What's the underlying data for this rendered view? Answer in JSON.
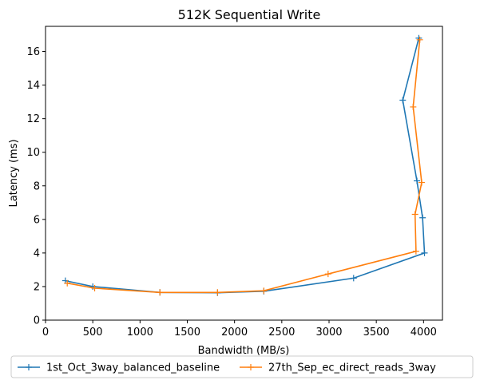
{
  "chart_data": {
    "type": "line",
    "title": "512K  Sequential Write",
    "xlabel": "Bandwidth (MB/s)",
    "ylabel": "Latency (ms)",
    "xlim": [
      0,
      4200
    ],
    "ylim": [
      0,
      17.5
    ],
    "xticks": [
      0,
      500,
      1000,
      1500,
      2000,
      2500,
      3000,
      3500,
      4000
    ],
    "yticks": [
      0,
      2,
      4,
      6,
      8,
      10,
      12,
      14,
      16
    ],
    "grid": false,
    "legend_position": "bottom-center",
    "series": [
      {
        "name": "1st_Oct_3way_balanced_baseline",
        "color": "#1f77b4",
        "marker": "plus",
        "points": [
          [
            210,
            2.35
          ],
          [
            500,
            2.0
          ],
          [
            1210,
            1.65
          ],
          [
            1820,
            1.63
          ],
          [
            2310,
            1.72
          ],
          [
            3260,
            2.5
          ],
          [
            4010,
            4.0
          ],
          [
            3990,
            6.1
          ],
          [
            3930,
            8.3
          ],
          [
            3780,
            13.1
          ],
          [
            3950,
            16.8
          ]
        ]
      },
      {
        "name": "27th_Sep_ec_direct_reads_3way",
        "color": "#ff7f0e",
        "marker": "plus",
        "points": [
          [
            230,
            2.2
          ],
          [
            520,
            1.9
          ],
          [
            1210,
            1.65
          ],
          [
            1820,
            1.65
          ],
          [
            2310,
            1.75
          ],
          [
            2990,
            2.75
          ],
          [
            3920,
            4.1
          ],
          [
            3910,
            6.3
          ],
          [
            3980,
            8.2
          ],
          [
            3890,
            12.7
          ],
          [
            3960,
            16.7
          ]
        ]
      }
    ]
  }
}
